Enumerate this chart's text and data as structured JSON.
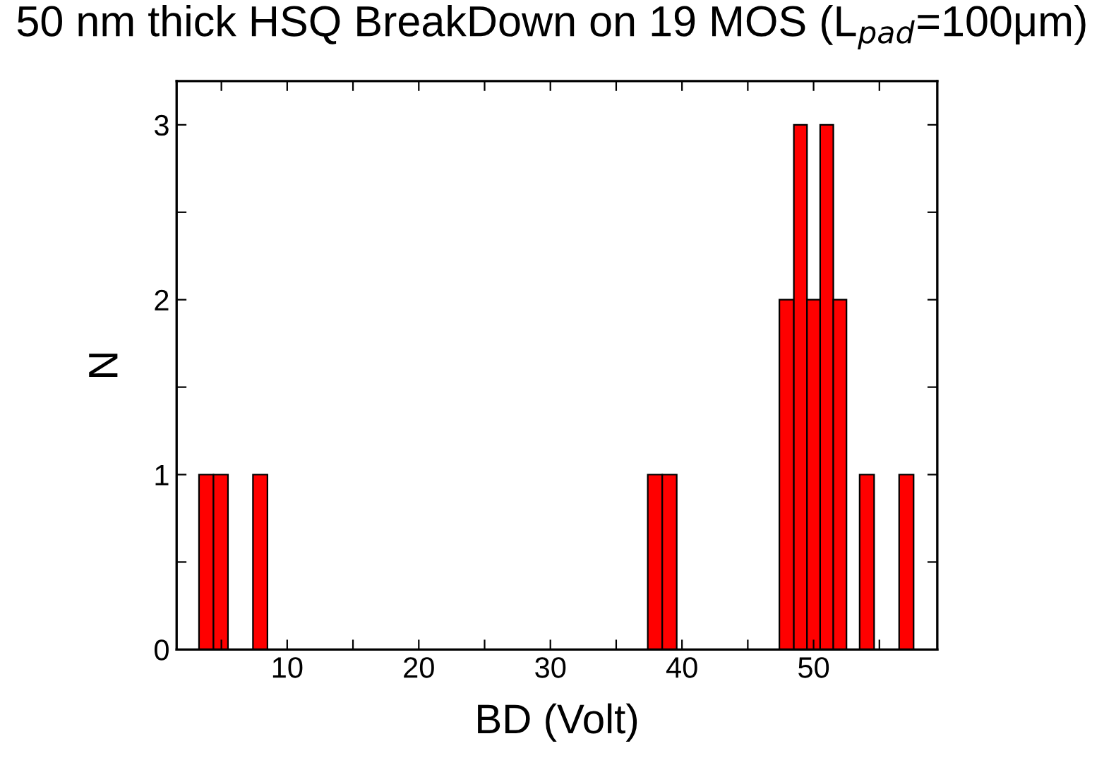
{
  "chart_data": {
    "type": "histogram",
    "title": "50 nm thick HSQ BreakDown on 19 MOS (L$_{pad}$=100μm)",
    "xlabel": "BD (Volt)",
    "ylabel": "N",
    "bins": [
      3.3,
      4.4,
      5.5,
      7.4,
      8.5,
      37.4,
      38.5,
      39.6,
      47.4,
      48.5,
      49.5,
      50.5,
      51.5,
      52.5,
      53.5,
      54.6,
      56.5,
      57.6
    ],
    "values": [
      1,
      1,
      0,
      1,
      0,
      1,
      1,
      0,
      2,
      3,
      2,
      3,
      2,
      0,
      1,
      0,
      1
    ],
    "color": "#ff0000",
    "xlim": [
      1.6,
      59.4
    ],
    "xticks": [
      {
        "value": 5,
        "label": null
      },
      10,
      {
        "value": 15,
        "label": null
      },
      20,
      {
        "value": 25,
        "label": null
      },
      30,
      {
        "value": 35,
        "label": null
      },
      40,
      {
        "value": 45,
        "label": null
      },
      50,
      {
        "value": 55,
        "label": null
      }
    ],
    "ylim": [
      0,
      3.25
    ],
    "yticks": [
      0,
      {
        "value": 0.5,
        "label": null
      },
      1,
      {
        "value": 1.5,
        "label": null
      },
      2,
      {
        "value": 2.5,
        "label": null
      },
      3
    ],
    "grid": false
  }
}
